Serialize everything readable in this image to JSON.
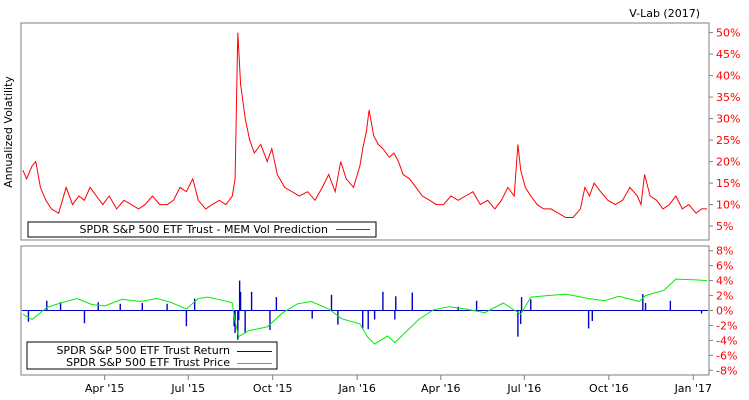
{
  "credit": "V-Lab (2017)",
  "colors": {
    "frame": "#7f7f7f",
    "vol_line": "#ff0000",
    "tick_red": "#ff0000",
    "return_bar": "#0000c8",
    "price_line": "#00ee00",
    "text": "#000000"
  },
  "chart_data": [
    {
      "type": "line",
      "ylabel": "Annualized Volatility",
      "y_ticks": [
        "5%",
        "10%",
        "15%",
        "20%",
        "25%",
        "30%",
        "35%",
        "40%",
        "45%",
        "50%"
      ],
      "ylim": [
        2,
        52
      ],
      "grid": false,
      "legend_position": "bottom-left",
      "series": [
        {
          "name": "SPDR S&P 500 ETF Trust - MEM Vol Prediction",
          "color": "#ff0000",
          "x": [
            "2015-01-02",
            "2015-01-06",
            "2015-01-12",
            "2015-01-16",
            "2015-01-21",
            "2015-01-27",
            "2015-02-02",
            "2015-02-10",
            "2015-02-18",
            "2015-02-25",
            "2015-03-04",
            "2015-03-10",
            "2015-03-16",
            "2015-03-23",
            "2015-03-30",
            "2015-04-06",
            "2015-04-14",
            "2015-04-22",
            "2015-04-30",
            "2015-05-08",
            "2015-05-15",
            "2015-05-23",
            "2015-05-31",
            "2015-06-08",
            "2015-06-15",
            "2015-06-22",
            "2015-06-29",
            "2015-07-06",
            "2015-07-12",
            "2015-07-20",
            "2015-07-27",
            "2015-08-04",
            "2015-08-11",
            "2015-08-18",
            "2015-08-21",
            "2015-08-24",
            "2015-08-27",
            "2015-09-01",
            "2015-09-06",
            "2015-09-11",
            "2015-09-18",
            "2015-09-25",
            "2015-09-30",
            "2015-10-06",
            "2015-10-14",
            "2015-10-22",
            "2015-10-30",
            "2015-11-08",
            "2015-11-16",
            "2015-11-24",
            "2015-12-01",
            "2015-12-08",
            "2015-12-14",
            "2015-12-20",
            "2015-12-28",
            "2016-01-04",
            "2016-01-07",
            "2016-01-11",
            "2016-01-14",
            "2016-01-19",
            "2016-01-24",
            "2016-01-29",
            "2016-02-05",
            "2016-02-10",
            "2016-02-15",
            "2016-02-20",
            "2016-02-27",
            "2016-03-05",
            "2016-03-12",
            "2016-03-20",
            "2016-03-27",
            "2016-04-04",
            "2016-04-12",
            "2016-04-20",
            "2016-04-28",
            "2016-05-06",
            "2016-05-14",
            "2016-05-22",
            "2016-05-30",
            "2016-06-06",
            "2016-06-13",
            "2016-06-20",
            "2016-06-24",
            "2016-06-27",
            "2016-07-02",
            "2016-07-08",
            "2016-07-15",
            "2016-07-22",
            "2016-07-30",
            "2016-08-07",
            "2016-08-15",
            "2016-08-23",
            "2016-08-31",
            "2016-09-05",
            "2016-09-10",
            "2016-09-15",
            "2016-09-22",
            "2016-09-30",
            "2016-10-08",
            "2016-10-16",
            "2016-10-24",
            "2016-11-01",
            "2016-11-05",
            "2016-11-09",
            "2016-11-15",
            "2016-11-22",
            "2016-11-29",
            "2016-12-06",
            "2016-12-13",
            "2016-12-20",
            "2016-12-27",
            "2017-01-04",
            "2017-01-10",
            "2017-01-16"
          ],
          "values": [
            18,
            16,
            19,
            20,
            14,
            11,
            9,
            8,
            14,
            10,
            12,
            11,
            14,
            12,
            10,
            12,
            9,
            11,
            10,
            9,
            10,
            12,
            10,
            10,
            11,
            14,
            13,
            16,
            11,
            9,
            10,
            11,
            10,
            12,
            16,
            50,
            38,
            30,
            25,
            22,
            24,
            20,
            23,
            17,
            14,
            13,
            12,
            13,
            11,
            14,
            17,
            13,
            20,
            16,
            14,
            19,
            23,
            27,
            32,
            26,
            24,
            23,
            21,
            22,
            20,
            17,
            16,
            14,
            12,
            11,
            10,
            10,
            12,
            11,
            12,
            13,
            10,
            11,
            9,
            11,
            14,
            12,
            24,
            18,
            14,
            12,
            10,
            9,
            9,
            8,
            7,
            7,
            9,
            14,
            12,
            15,
            13,
            11,
            10,
            11,
            14,
            12,
            10,
            17,
            12,
            11,
            9,
            10,
            12,
            9,
            10,
            8,
            9,
            9
          ]
        }
      ]
    },
    {
      "type": "bar",
      "y_ticks": [
        "8%",
        "6%",
        "4%",
        "2%",
        "0%",
        "-2%",
        "-4%",
        "-6%",
        "-8%"
      ],
      "ylim": [
        -8.5,
        8.5
      ],
      "grid": false,
      "legend_position": "bottom-left",
      "x_ticks": [
        "Apr '15",
        "Jul '15",
        "Oct '15",
        "Jan '16",
        "Apr '16",
        "Jul '16",
        "Oct '16",
        "Jan '17"
      ],
      "series": [
        {
          "name": "SPDR S&P 500 ETF Trust Return",
          "type": "bar",
          "color": "#0000c8",
          "x": [
            "2015-01-08",
            "2015-01-28",
            "2015-02-12",
            "2015-03-10",
            "2015-03-25",
            "2015-04-18",
            "2015-05-12",
            "2015-06-08",
            "2015-06-29",
            "2015-07-08",
            "2015-08-20",
            "2015-08-21",
            "2015-08-24",
            "2015-08-25",
            "2015-08-26",
            "2015-08-27",
            "2015-09-01",
            "2015-09-08",
            "2015-09-28",
            "2015-10-05",
            "2015-11-13",
            "2015-12-04",
            "2015-12-11",
            "2016-01-07",
            "2016-01-13",
            "2016-01-20",
            "2016-01-29",
            "2016-02-11",
            "2016-02-12",
            "2016-03-01",
            "2016-04-20",
            "2016-05-10",
            "2016-06-24",
            "2016-06-27",
            "2016-06-28",
            "2016-07-08",
            "2016-09-09",
            "2016-09-13",
            "2016-11-07",
            "2016-11-10",
            "2016-12-07",
            "2017-01-10"
          ],
          "values": [
            -1.5,
            1.3,
            1.1,
            -1.7,
            1.1,
            0.9,
            1.0,
            0.9,
            -2.1,
            1.6,
            -2.1,
            -3.0,
            -3.9,
            -1.3,
            4.0,
            2.5,
            -3.0,
            2.5,
            -2.6,
            1.8,
            -1.1,
            2.1,
            -1.9,
            -2.4,
            -2.5,
            -1.2,
            2.5,
            -1.2,
            1.9,
            2.4,
            0.5,
            1.3,
            -3.5,
            -1.8,
            1.8,
            1.5,
            -2.4,
            -1.4,
            2.2,
            1.0,
            1.3,
            -0.4
          ]
        },
        {
          "name": "SPDR S&P 500 ETF Trust Price",
          "type": "line",
          "color": "#00ee00",
          "x": [
            "2015-01-02",
            "2015-01-12",
            "2015-01-28",
            "2015-02-12",
            "2015-03-02",
            "2015-03-18",
            "2015-04-01",
            "2015-04-20",
            "2015-05-10",
            "2015-05-28",
            "2015-06-12",
            "2015-06-29",
            "2015-07-12",
            "2015-07-22",
            "2015-08-10",
            "2015-08-18",
            "2015-08-21",
            "2015-08-25",
            "2015-09-05",
            "2015-09-25",
            "2015-10-12",
            "2015-10-28",
            "2015-11-12",
            "2015-12-01",
            "2015-12-15",
            "2016-01-04",
            "2016-01-12",
            "2016-01-20",
            "2016-02-03",
            "2016-02-11",
            "2016-02-22",
            "2016-03-08",
            "2016-03-24",
            "2016-04-10",
            "2016-04-28",
            "2016-05-19",
            "2016-06-08",
            "2016-06-27",
            "2016-07-08",
            "2016-07-26",
            "2016-08-15",
            "2016-09-09",
            "2016-09-26",
            "2016-10-12",
            "2016-11-03",
            "2016-11-10",
            "2016-11-30",
            "2016-12-13",
            "2017-01-04",
            "2017-01-16"
          ],
          "values": [
            -0.5,
            -1.2,
            0.4,
            1.0,
            1.6,
            0.8,
            0.6,
            1.5,
            1.2,
            1.6,
            1.1,
            0.2,
            1.6,
            1.8,
            1.3,
            1.0,
            -1.5,
            -3.5,
            -2.7,
            -2.2,
            -0.3,
            0.9,
            1.2,
            0.2,
            -1.1,
            -1.8,
            -3.5,
            -4.5,
            -3.4,
            -4.3,
            -3.0,
            -1.2,
            0.1,
            0.5,
            0.2,
            -0.3,
            1.0,
            -0.5,
            1.8,
            2.0,
            2.2,
            1.6,
            1.3,
            1.9,
            1.2,
            2.0,
            2.7,
            4.2,
            4.1,
            4.0
          ]
        }
      ]
    }
  ]
}
